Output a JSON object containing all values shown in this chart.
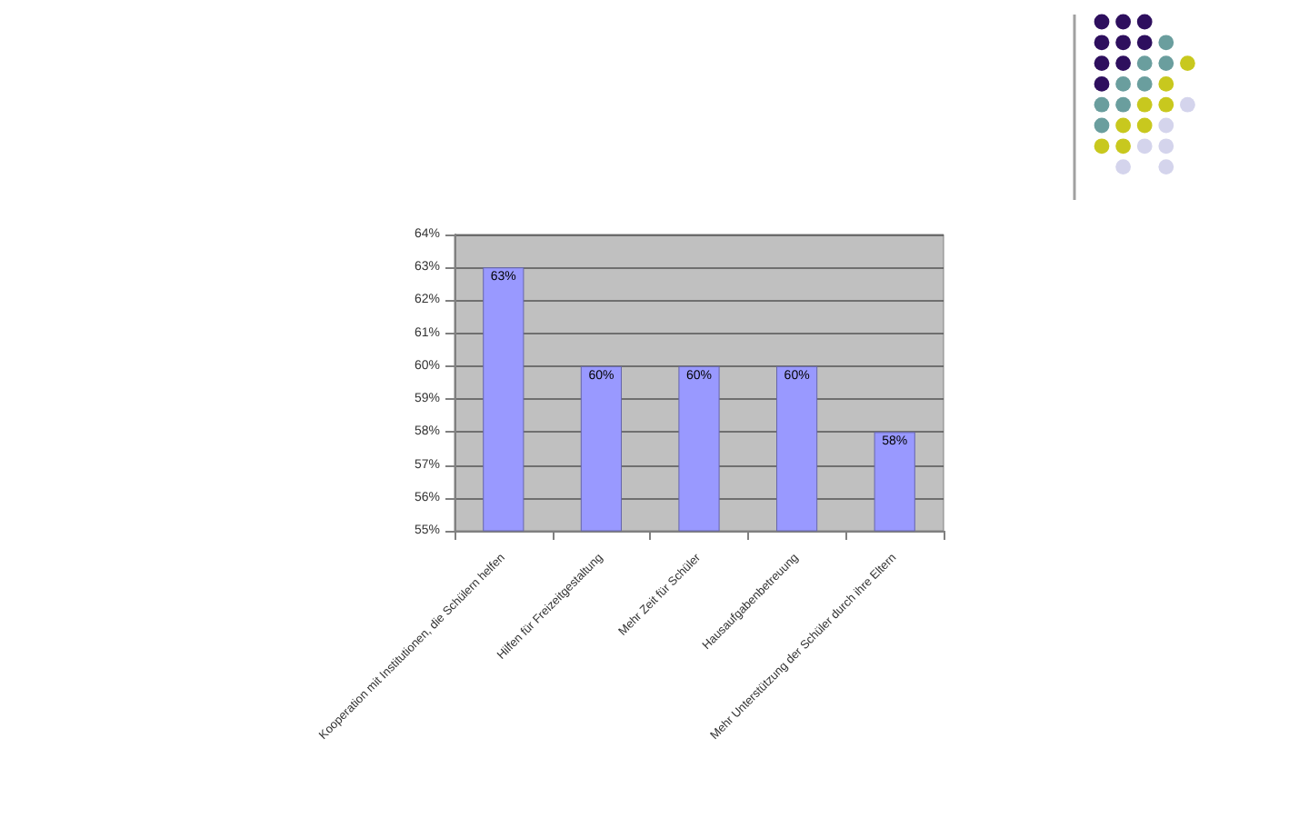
{
  "chart_data": {
    "type": "bar",
    "categories": [
      "Kooperation mit Institutionen, die Schülern helfen",
      "Hilfen für Freizeitgestaltung",
      "Mehr Zeit für Schüler",
      "Hausaufgabenbetreuung",
      "Mehr Unterstützung der Schüler durch ihre Eltern"
    ],
    "values": [
      63,
      60,
      60,
      60,
      58
    ],
    "color": "#9999ff",
    "ylim": [
      55,
      64
    ],
    "yticks": [
      {
        "value": 55,
        "label": "55%"
      },
      {
        "value": 56,
        "label": "56%"
      },
      {
        "value": 57,
        "label": "57%"
      },
      {
        "value": 58,
        "label": "58%"
      },
      {
        "value": 59,
        "label": "59%"
      },
      {
        "value": 60,
        "label": "60%"
      },
      {
        "value": 61,
        "label": "61%"
      },
      {
        "value": 62,
        "label": "62%"
      },
      {
        "value": 63,
        "label": "63%"
      },
      {
        "value": 64,
        "label": "64%"
      }
    ],
    "value_labels": [
      "63%",
      "60%",
      "60%",
      "60%",
      "58%"
    ],
    "grid": "y"
  }
}
